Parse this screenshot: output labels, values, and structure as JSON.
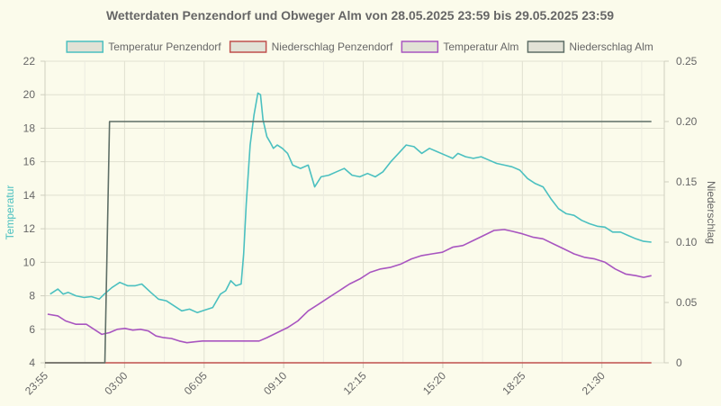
{
  "chart_data": {
    "type": "line",
    "title": "Wetterdaten Penzendorf und Obweger Alm von 28.05.2025 23:59 bis 29.05.2025 23:59",
    "y_left_label": "Temperatur",
    "y_right_label": "Niederschlag",
    "y_left_lim": [
      4,
      22
    ],
    "y_right_lim": [
      0,
      0.25
    ],
    "y_left_ticks": [
      "4",
      "6",
      "8",
      "10",
      "12",
      "14",
      "16",
      "18",
      "20",
      "22"
    ],
    "y_right_ticks": [
      "0",
      "0.05",
      "0.10",
      "0.15",
      "0.20",
      "0.25"
    ],
    "x_ticks": [
      "23:55",
      "03:00",
      "06:05",
      "09:10",
      "12:15",
      "15:20",
      "18:25",
      "21:30"
    ],
    "legend_position": "top",
    "grid": true,
    "series": [
      {
        "name": "Temperatur Penzendorf",
        "axis": "left",
        "color": "#4bc0c0",
        "points": [
          [
            0.2,
            8.1
          ],
          [
            0.5,
            8.4
          ],
          [
            0.7,
            8.1
          ],
          [
            0.9,
            8.2
          ],
          [
            1.2,
            8.0
          ],
          [
            1.5,
            7.9
          ],
          [
            1.8,
            7.95
          ],
          [
            2.1,
            7.8
          ],
          [
            2.3,
            8.1
          ],
          [
            2.6,
            8.5
          ],
          [
            2.9,
            8.8
          ],
          [
            3.2,
            8.6
          ],
          [
            3.5,
            8.6
          ],
          [
            3.75,
            8.7
          ],
          [
            4.1,
            8.2
          ],
          [
            4.4,
            7.8
          ],
          [
            4.7,
            7.7
          ],
          [
            5.0,
            7.4
          ],
          [
            5.3,
            7.1
          ],
          [
            5.6,
            7.2
          ],
          [
            5.9,
            7.0
          ],
          [
            6.2,
            7.15
          ],
          [
            6.5,
            7.3
          ],
          [
            6.8,
            8.1
          ],
          [
            7.0,
            8.3
          ],
          [
            7.2,
            8.9
          ],
          [
            7.4,
            8.6
          ],
          [
            7.6,
            8.7
          ],
          [
            7.7,
            10.5
          ],
          [
            7.8,
            13.5
          ],
          [
            7.95,
            17.0
          ],
          [
            8.1,
            18.8
          ],
          [
            8.25,
            20.1
          ],
          [
            8.35,
            20.0
          ],
          [
            8.45,
            18.5
          ],
          [
            8.6,
            17.5
          ],
          [
            8.75,
            17.1
          ],
          [
            8.85,
            16.8
          ],
          [
            9.0,
            17.0
          ],
          [
            9.2,
            16.8
          ],
          [
            9.4,
            16.5
          ],
          [
            9.6,
            15.8
          ],
          [
            9.9,
            15.6
          ],
          [
            10.2,
            15.8
          ],
          [
            10.45,
            14.5
          ],
          [
            10.7,
            15.1
          ],
          [
            11.0,
            15.2
          ],
          [
            11.3,
            15.4
          ],
          [
            11.6,
            15.6
          ],
          [
            11.9,
            15.2
          ],
          [
            12.2,
            15.1
          ],
          [
            12.5,
            15.3
          ],
          [
            12.8,
            15.1
          ],
          [
            13.1,
            15.4
          ],
          [
            13.4,
            16.0
          ],
          [
            13.7,
            16.5
          ],
          [
            14.0,
            17.0
          ],
          [
            14.3,
            16.9
          ],
          [
            14.6,
            16.5
          ],
          [
            14.9,
            16.8
          ],
          [
            15.2,
            16.6
          ],
          [
            15.5,
            16.4
          ],
          [
            15.8,
            16.2
          ],
          [
            16.0,
            16.5
          ],
          [
            16.3,
            16.3
          ],
          [
            16.6,
            16.2
          ],
          [
            16.9,
            16.3
          ],
          [
            17.2,
            16.1
          ],
          [
            17.5,
            15.9
          ],
          [
            17.8,
            15.8
          ],
          [
            18.1,
            15.7
          ],
          [
            18.4,
            15.5
          ],
          [
            18.7,
            15.0
          ],
          [
            19.0,
            14.7
          ],
          [
            19.3,
            14.5
          ],
          [
            19.6,
            13.8
          ],
          [
            19.9,
            13.2
          ],
          [
            20.2,
            12.9
          ],
          [
            20.5,
            12.8
          ],
          [
            20.8,
            12.5
          ],
          [
            21.1,
            12.3
          ],
          [
            21.4,
            12.15
          ],
          [
            21.7,
            12.1
          ],
          [
            22.0,
            11.8
          ],
          [
            22.3,
            11.8
          ],
          [
            22.6,
            11.6
          ],
          [
            22.9,
            11.4
          ],
          [
            23.2,
            11.25
          ],
          [
            23.5,
            11.2
          ]
        ]
      },
      {
        "name": "Niederschlag Penzendorf",
        "axis": "right",
        "color": "#c0504d",
        "points": [
          [
            0,
            0
          ],
          [
            23.5,
            0
          ]
        ]
      },
      {
        "name": "Temperatur Alm",
        "axis": "left",
        "color": "#a855c0",
        "points": [
          [
            0.1,
            6.9
          ],
          [
            0.5,
            6.8
          ],
          [
            0.8,
            6.5
          ],
          [
            1.2,
            6.3
          ],
          [
            1.6,
            6.3
          ],
          [
            1.9,
            6.0
          ],
          [
            2.2,
            5.7
          ],
          [
            2.5,
            5.8
          ],
          [
            2.8,
            6.0
          ],
          [
            3.1,
            6.05
          ],
          [
            3.4,
            5.95
          ],
          [
            3.7,
            6.0
          ],
          [
            4.0,
            5.9
          ],
          [
            4.3,
            5.6
          ],
          [
            4.6,
            5.5
          ],
          [
            4.9,
            5.45
          ],
          [
            5.2,
            5.3
          ],
          [
            5.5,
            5.2
          ],
          [
            5.8,
            5.25
          ],
          [
            6.1,
            5.3
          ],
          [
            6.4,
            5.3
          ],
          [
            6.8,
            5.3
          ],
          [
            7.2,
            5.3
          ],
          [
            7.6,
            5.3
          ],
          [
            8.0,
            5.3
          ],
          [
            8.3,
            5.3
          ],
          [
            8.6,
            5.5
          ],
          [
            9.0,
            5.8
          ],
          [
            9.4,
            6.1
          ],
          [
            9.8,
            6.5
          ],
          [
            10.2,
            7.1
          ],
          [
            10.6,
            7.5
          ],
          [
            11.0,
            7.9
          ],
          [
            11.4,
            8.3
          ],
          [
            11.8,
            8.7
          ],
          [
            12.2,
            9.0
          ],
          [
            12.6,
            9.4
          ],
          [
            13.0,
            9.6
          ],
          [
            13.4,
            9.7
          ],
          [
            13.8,
            9.9
          ],
          [
            14.2,
            10.2
          ],
          [
            14.6,
            10.4
          ],
          [
            15.0,
            10.5
          ],
          [
            15.4,
            10.6
          ],
          [
            15.8,
            10.9
          ],
          [
            16.2,
            11.0
          ],
          [
            16.6,
            11.3
          ],
          [
            17.0,
            11.6
          ],
          [
            17.4,
            11.9
          ],
          [
            17.8,
            11.95
          ],
          [
            18.1,
            11.85
          ],
          [
            18.5,
            11.7
          ],
          [
            18.9,
            11.5
          ],
          [
            19.3,
            11.4
          ],
          [
            19.7,
            11.1
          ],
          [
            20.1,
            10.8
          ],
          [
            20.5,
            10.5
          ],
          [
            20.9,
            10.3
          ],
          [
            21.3,
            10.2
          ],
          [
            21.7,
            10.0
          ],
          [
            22.1,
            9.6
          ],
          [
            22.5,
            9.3
          ],
          [
            22.9,
            9.2
          ],
          [
            23.2,
            9.1
          ],
          [
            23.5,
            9.2
          ]
        ]
      },
      {
        "name": "Niederschlag Alm",
        "axis": "right",
        "color": "#5e6e66",
        "points": [
          [
            0,
            0
          ],
          [
            2.32,
            0
          ],
          [
            2.5,
            0.2
          ],
          [
            23.5,
            0.2
          ]
        ]
      }
    ]
  }
}
